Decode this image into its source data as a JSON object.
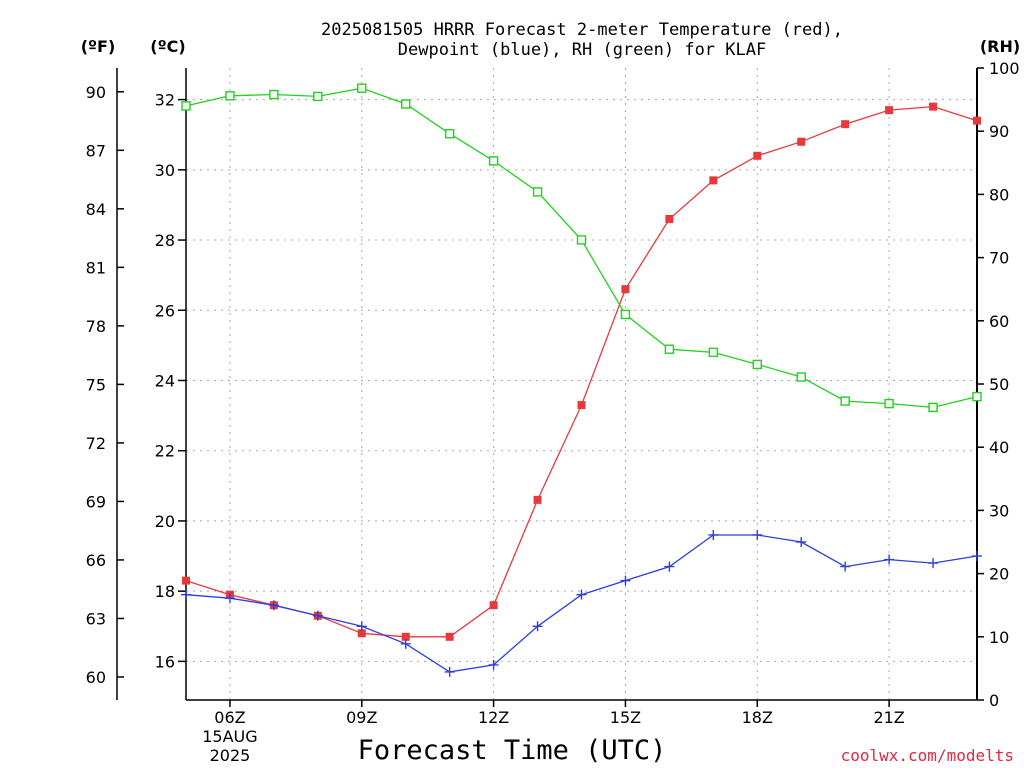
{
  "chart_data": {
    "type": "line",
    "title_line1": "2025081505 HRRR Forecast 2-meter Temperature (red),",
    "title_line2": "Dewpoint (blue), RH (green) for KLAF",
    "xlabel": "Forecast Time (UTC)",
    "credit": "coolwx.com/modelts",
    "units": {
      "fahrenheit": "(ºF)",
      "celsius": "(ºC)",
      "rh": "(RH)"
    },
    "x_hours": [
      5,
      6,
      7,
      8,
      9,
      10,
      11,
      12,
      13,
      14,
      15,
      16,
      17,
      18,
      19,
      20,
      21,
      22,
      23
    ],
    "xlim": [
      5,
      23
    ],
    "x_ticks": [
      {
        "hour": 6,
        "label": "06Z",
        "sub1": "15AUG",
        "sub2": "2025"
      },
      {
        "hour": 9,
        "label": "09Z"
      },
      {
        "hour": 12,
        "label": "12Z"
      },
      {
        "hour": 15,
        "label": "15Z"
      },
      {
        "hour": 18,
        "label": "18Z"
      },
      {
        "hour": 21,
        "label": "21Z"
      }
    ],
    "left_axis_c": {
      "ylim": [
        14.9,
        32.9
      ],
      "ticks": [
        16,
        18,
        20,
        22,
        24,
        26,
        28,
        30,
        32
      ]
    },
    "left_axis_f": {
      "ticks": [
        60,
        63,
        66,
        69,
        72,
        75,
        78,
        81,
        84,
        87,
        90
      ]
    },
    "right_axis_rh": {
      "ylim": [
        0,
        100
      ],
      "ticks": [
        0,
        10,
        20,
        30,
        40,
        50,
        60,
        70,
        80,
        90,
        100
      ]
    },
    "grid": true,
    "series": [
      {
        "name": "Temperature (red)",
        "axis": "celsius",
        "color": "#e8383c",
        "marker": "filled-square",
        "values": [
          18.3,
          17.9,
          17.6,
          17.3,
          16.8,
          16.7,
          16.7,
          17.6,
          20.6,
          23.3,
          26.6,
          28.6,
          29.7,
          30.4,
          30.8,
          31.3,
          31.7,
          31.8,
          31.4
        ]
      },
      {
        "name": "Dewpoint (blue)",
        "axis": "celsius",
        "color": "#2b3fe0",
        "marker": "plus",
        "values": [
          17.9,
          17.8,
          17.6,
          17.3,
          17.0,
          16.5,
          15.7,
          15.9,
          17.0,
          17.9,
          18.3,
          18.7,
          19.6,
          19.6,
          19.4,
          18.7,
          18.9,
          18.8,
          19.0
        ]
      },
      {
        "name": "RH (green)",
        "axis": "rh",
        "color": "#1ed21e",
        "marker": "open-square",
        "values": [
          94,
          95.6,
          95.8,
          95.5,
          96.8,
          94.3,
          89.6,
          85.3,
          80.4,
          72.8,
          61.0,
          55.5,
          55.0,
          53.1,
          51.1,
          47.3,
          46.9,
          46.3,
          48.0
        ]
      }
    ]
  }
}
